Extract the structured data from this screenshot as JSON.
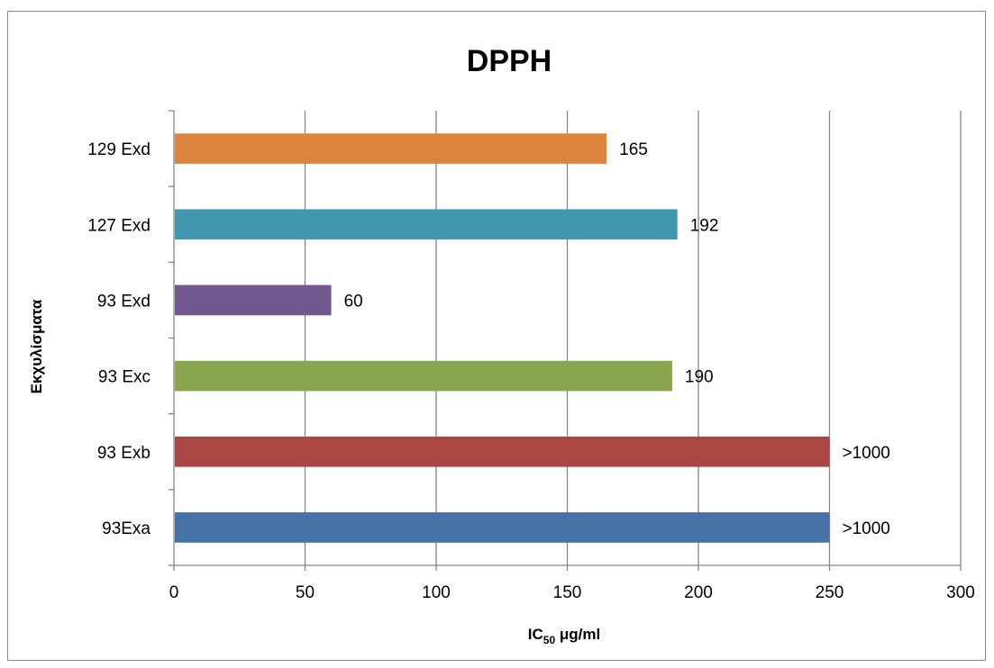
{
  "chart_data": {
    "type": "bar",
    "orientation": "horizontal",
    "title": "DPPH",
    "xlabel": "IC50 μg/ml",
    "xlabel_main": "IC",
    "xlabel_sub": "50",
    "xlabel_rest": " μg/ml",
    "ylabel": "Εκχυλίσματα",
    "categories": [
      "93Exa",
      "93 Exb",
      "93 Exc",
      "93 Exd",
      "127 Exd",
      "129 Exd"
    ],
    "values": [
      250,
      250,
      190,
      60,
      192,
      165
    ],
    "data_labels": [
      ">1000",
      ">1000",
      "190",
      "60",
      "192",
      "165"
    ],
    "colors": [
      "#4672A8",
      "#AA4643",
      "#89A54E",
      "#71588F",
      "#4198AF",
      "#DB843D"
    ],
    "xlim": [
      0,
      300
    ],
    "xticks": [
      0,
      50,
      100,
      150,
      200,
      250,
      300
    ],
    "grid": "vertical",
    "legend": "none"
  }
}
